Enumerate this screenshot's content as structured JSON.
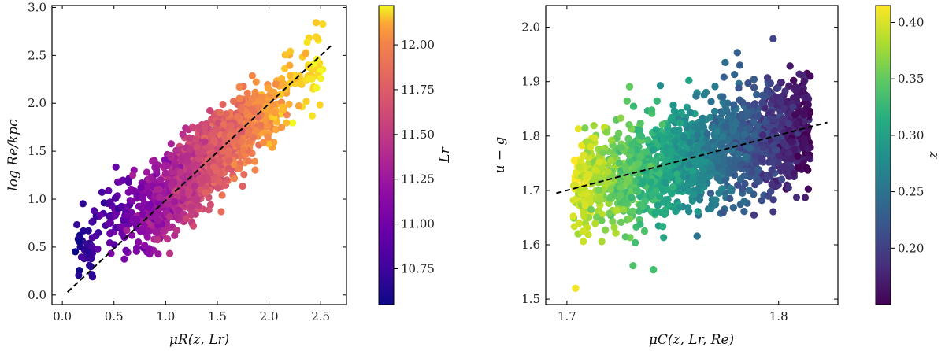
{
  "chart_data": [
    {
      "type": "scatter",
      "xlabel": "μR(z, Lr)",
      "ylabel": "log Re/kpc",
      "xlim": [
        -0.1,
        2.75
      ],
      "ylim": [
        -0.1,
        3.02
      ],
      "xticks": [
        "0.0",
        "0.5",
        "1.0",
        "1.5",
        "2.0",
        "2.5"
      ],
      "yticks": [
        "0.0",
        "0.5",
        "1.0",
        "1.5",
        "2.0",
        "2.5",
        "3.0"
      ],
      "fit_line": {
        "x": [
          0.05,
          2.62
        ],
        "y": [
          0.03,
          2.62
        ]
      },
      "colormap": "plasma",
      "point_count": 1800,
      "colorbar": {
        "label": "Lr",
        "range": [
          10.55,
          12.22
        ],
        "ticks": [
          "10.75",
          "11.00",
          "11.25",
          "11.50",
          "11.75",
          "12.00"
        ]
      }
    },
    {
      "type": "scatter",
      "xlabel": "μC(z, Lr, Re)",
      "ylabel": "u − g",
      "xlim": [
        1.69,
        1.828
      ],
      "ylim": [
        1.49,
        2.04
      ],
      "xticks": [
        "1.7",
        "1.8"
      ],
      "yticks": [
        "1.5",
        "1.6",
        "1.7",
        "1.8",
        "1.9",
        "2.0"
      ],
      "fit_line": {
        "x": [
          1.695,
          1.823
        ],
        "y": [
          1.695,
          1.825
        ]
      },
      "colormap": "viridis",
      "point_count": 3000,
      "colorbar": {
        "label": "z",
        "range": [
          0.15,
          0.415
        ],
        "ticks": [
          "0.20",
          "0.25",
          "0.30",
          "0.35",
          "0.40"
        ]
      }
    }
  ]
}
